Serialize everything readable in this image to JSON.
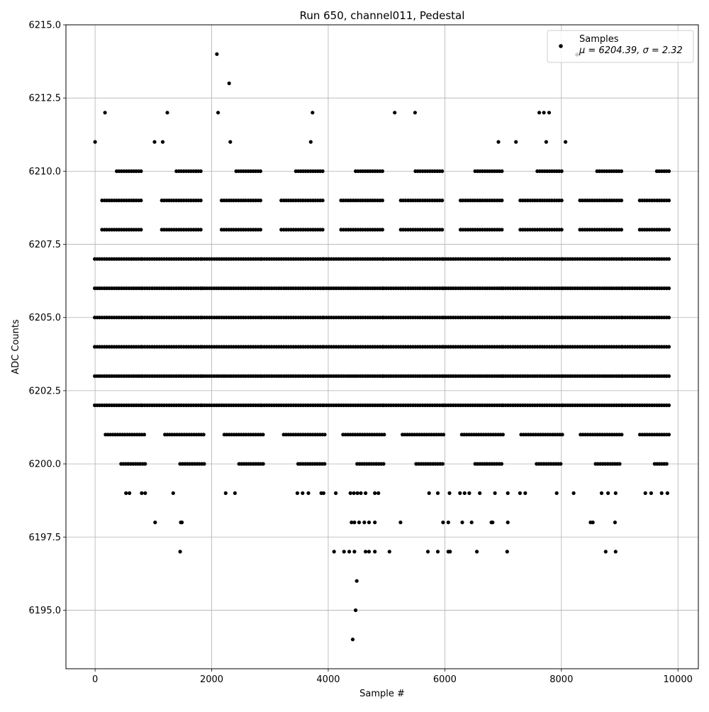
{
  "chart_data": {
    "type": "scatter",
    "title": "Run 650, channel011, Pedestal",
    "xlabel": "Sample #",
    "ylabel": "ADC Counts",
    "xlim": [
      -500,
      10350
    ],
    "ylim": [
      6193,
      6215
    ],
    "xticks": [
      {
        "value": 0,
        "label": "0"
      },
      {
        "value": 2000,
        "label": "2000"
      },
      {
        "value": 4000,
        "label": "4000"
      },
      {
        "value": 6000,
        "label": "6000"
      },
      {
        "value": 8000,
        "label": "8000"
      },
      {
        "value": 10000,
        "label": "10000"
      }
    ],
    "yticks": [
      {
        "value": 6195.0,
        "label": "6195.0"
      },
      {
        "value": 6197.5,
        "label": "6197.5"
      },
      {
        "value": 6200.0,
        "label": "6200.0"
      },
      {
        "value": 6202.5,
        "label": "6202.5"
      },
      {
        "value": 6205.0,
        "label": "6205.0"
      },
      {
        "value": 6207.5,
        "label": "6207.5"
      },
      {
        "value": 6210.0,
        "label": "6210.0"
      },
      {
        "value": 6212.5,
        "label": "6212.5"
      },
      {
        "value": 6215.0,
        "label": "6215.0"
      }
    ],
    "grid": true,
    "legend": {
      "position": "top-right",
      "marker_color": "#000000",
      "entries": [
        {
          "label": "Samples",
          "stat_line": "μ = 6204.39, σ = 2.32"
        }
      ]
    },
    "series": [
      {
        "name": "Samples",
        "color": "#000000",
        "bands": [
          {
            "y": 6203,
            "x_start": 0,
            "x_end": 9840
          },
          {
            "y": 6204,
            "x_start": 0,
            "x_end": 9840
          },
          {
            "y": 6205,
            "x_start": 0,
            "x_end": 9840
          },
          {
            "y": 6206,
            "x_start": 0,
            "x_end": 9840
          },
          {
            "y": 6207,
            "x_start": 0,
            "x_end": 9840
          },
          {
            "y": 6202,
            "x_start": 0,
            "x_end": 9840
          },
          {
            "y": 6201,
            "x_start": 60,
            "x_end": 9840
          },
          {
            "y": 6208,
            "x_start": 0,
            "x_end": 9840
          },
          {
            "y": 6209,
            "x_start": 0,
            "x_end": 9840
          },
          {
            "y": 6210,
            "x_start": 0,
            "x_end": 9840
          },
          {
            "y": 6200,
            "x_start": 80,
            "x_end": 9800
          }
        ],
        "points": [
          {
            "x": 0,
            "y": 6211
          },
          {
            "x": 170,
            "y": 6212
          },
          {
            "x": 1020,
            "y": 6211
          },
          {
            "x": 1160,
            "y": 6211
          },
          {
            "x": 1240,
            "y": 6212
          },
          {
            "x": 2090,
            "y": 6214
          },
          {
            "x": 2110,
            "y": 6212
          },
          {
            "x": 2300,
            "y": 6213
          },
          {
            "x": 2320,
            "y": 6211
          },
          {
            "x": 3700,
            "y": 6211
          },
          {
            "x": 3730,
            "y": 6212
          },
          {
            "x": 5140,
            "y": 6212
          },
          {
            "x": 5490,
            "y": 6212
          },
          {
            "x": 6920,
            "y": 6211
          },
          {
            "x": 7220,
            "y": 6211
          },
          {
            "x": 7620,
            "y": 6212
          },
          {
            "x": 7700,
            "y": 6212
          },
          {
            "x": 7740,
            "y": 6211
          },
          {
            "x": 7790,
            "y": 6212
          },
          {
            "x": 8070,
            "y": 6211
          },
          {
            "x": 530,
            "y": 6199
          },
          {
            "x": 590,
            "y": 6199
          },
          {
            "x": 800,
            "y": 6199
          },
          {
            "x": 860,
            "y": 6199
          },
          {
            "x": 1340,
            "y": 6199
          },
          {
            "x": 2240,
            "y": 6199
          },
          {
            "x": 2400,
            "y": 6199
          },
          {
            "x": 3470,
            "y": 6199
          },
          {
            "x": 3560,
            "y": 6199
          },
          {
            "x": 3660,
            "y": 6199
          },
          {
            "x": 3880,
            "y": 6199
          },
          {
            "x": 3920,
            "y": 6199
          },
          {
            "x": 4130,
            "y": 6199
          },
          {
            "x": 4380,
            "y": 6199
          },
          {
            "x": 4440,
            "y": 6199
          },
          {
            "x": 4500,
            "y": 6199
          },
          {
            "x": 4560,
            "y": 6199
          },
          {
            "x": 4640,
            "y": 6199
          },
          {
            "x": 4800,
            "y": 6199
          },
          {
            "x": 4860,
            "y": 6199
          },
          {
            "x": 5730,
            "y": 6199
          },
          {
            "x": 5880,
            "y": 6199
          },
          {
            "x": 6080,
            "y": 6199
          },
          {
            "x": 6260,
            "y": 6199
          },
          {
            "x": 6340,
            "y": 6199
          },
          {
            "x": 6420,
            "y": 6199
          },
          {
            "x": 6600,
            "y": 6199
          },
          {
            "x": 6860,
            "y": 6199
          },
          {
            "x": 7080,
            "y": 6199
          },
          {
            "x": 7290,
            "y": 6199
          },
          {
            "x": 7380,
            "y": 6199
          },
          {
            "x": 7920,
            "y": 6199
          },
          {
            "x": 8210,
            "y": 6199
          },
          {
            "x": 8690,
            "y": 6199
          },
          {
            "x": 8800,
            "y": 6199
          },
          {
            "x": 8930,
            "y": 6199
          },
          {
            "x": 9440,
            "y": 6199
          },
          {
            "x": 9540,
            "y": 6199
          },
          {
            "x": 9720,
            "y": 6199
          },
          {
            "x": 9820,
            "y": 6199
          },
          {
            "x": 1030,
            "y": 6198
          },
          {
            "x": 1470,
            "y": 6198
          },
          {
            "x": 1490,
            "y": 6198
          },
          {
            "x": 4400,
            "y": 6198
          },
          {
            "x": 4450,
            "y": 6198
          },
          {
            "x": 4530,
            "y": 6198
          },
          {
            "x": 4620,
            "y": 6198
          },
          {
            "x": 4700,
            "y": 6198
          },
          {
            "x": 4800,
            "y": 6198
          },
          {
            "x": 5240,
            "y": 6198
          },
          {
            "x": 5970,
            "y": 6198
          },
          {
            "x": 6060,
            "y": 6198
          },
          {
            "x": 6300,
            "y": 6198
          },
          {
            "x": 6460,
            "y": 6198
          },
          {
            "x": 6800,
            "y": 6198
          },
          {
            "x": 6820,
            "y": 6198
          },
          {
            "x": 7080,
            "y": 6198
          },
          {
            "x": 8500,
            "y": 6198
          },
          {
            "x": 8540,
            "y": 6198
          },
          {
            "x": 8920,
            "y": 6198
          },
          {
            "x": 1460,
            "y": 6197
          },
          {
            "x": 4100,
            "y": 6197
          },
          {
            "x": 4270,
            "y": 6197
          },
          {
            "x": 4360,
            "y": 6197
          },
          {
            "x": 4450,
            "y": 6197
          },
          {
            "x": 4640,
            "y": 6197
          },
          {
            "x": 4700,
            "y": 6197
          },
          {
            "x": 4800,
            "y": 6197
          },
          {
            "x": 5050,
            "y": 6197
          },
          {
            "x": 5710,
            "y": 6197
          },
          {
            "x": 5880,
            "y": 6197
          },
          {
            "x": 6060,
            "y": 6197
          },
          {
            "x": 6090,
            "y": 6197
          },
          {
            "x": 6550,
            "y": 6197
          },
          {
            "x": 7070,
            "y": 6197
          },
          {
            "x": 8760,
            "y": 6197
          },
          {
            "x": 8930,
            "y": 6197
          },
          {
            "x": 4490,
            "y": 6196
          },
          {
            "x": 4470,
            "y": 6195
          },
          {
            "x": 4420,
            "y": 6194
          }
        ]
      }
    ]
  }
}
